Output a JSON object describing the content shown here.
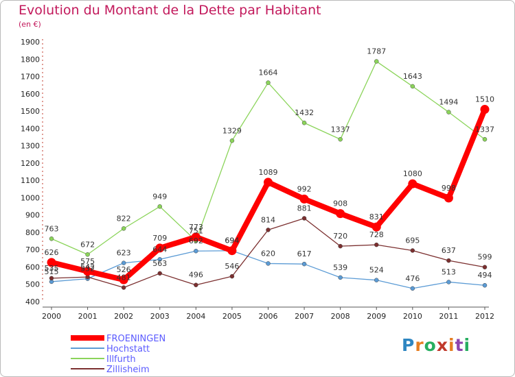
{
  "title": "Evolution du Montant de la Dette par Habitant",
  "subtitle": "(en €)",
  "logo": {
    "letters": [
      "P",
      "r",
      "o",
      "x",
      "i",
      "t",
      "i"
    ],
    "colors": [
      "#2e86c1",
      "#e67e22",
      "#27ae60",
      "#c0392b",
      "#e67e22",
      "#8e44ad",
      "#27ae60"
    ]
  },
  "chart_data": {
    "type": "line",
    "title": "Evolution du Montant de la Dette par Habitant",
    "subtitle": "(en €)",
    "xlabel": "",
    "ylabel": "",
    "ylim": [
      400,
      1900
    ],
    "yticks": [
      400,
      500,
      600,
      700,
      800,
      900,
      1000,
      1100,
      1200,
      1300,
      1400,
      1500,
      1600,
      1700,
      1800,
      1900
    ],
    "x": [
      "2000",
      "2001",
      "2002",
      "2003",
      "2004",
      "2005",
      "2006",
      "2007",
      "2008",
      "2009",
      "2010",
      "2011",
      "2012"
    ],
    "grid": false,
    "legend": "bottom-left",
    "series": [
      {
        "name": "FROENINGEN",
        "color": "#ff0000",
        "values": [
          626,
          575,
          526,
          709,
          773,
          694,
          1089,
          992,
          908,
          831,
          1080,
          998,
          1510
        ]
      },
      {
        "name": "Hochstatt",
        "color": "#5b9bd5",
        "values": [
          515,
          532,
          623,
          644,
          692,
          694,
          620,
          617,
          539,
          524,
          476,
          513,
          494
        ]
      },
      {
        "name": "Illfurth",
        "color": "#8bd45a",
        "values": [
          763,
          672,
          822,
          949,
          751,
          1329,
          1664,
          1432,
          1337,
          1787,
          1643,
          1494,
          1337
        ]
      },
      {
        "name": "Zillisheim",
        "color": "#7b2f2f",
        "values": [
          535,
          542,
          481,
          563,
          496,
          546,
          814,
          881,
          720,
          728,
          695,
          637,
          599
        ]
      }
    ]
  }
}
